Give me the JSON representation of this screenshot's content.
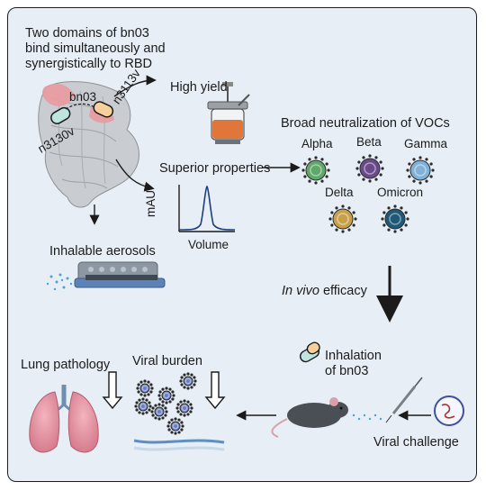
{
  "title_lines": [
    "Two domains of bn03",
    "bind simultaneously and",
    "synergistically to RBD"
  ],
  "domain_labels": {
    "bn03": "bn03",
    "n3113v": "n3113v",
    "n3130v": "n3130v"
  },
  "high_yield": "High yield",
  "superior_properties": "Superior properties",
  "chromatogram": {
    "ylabel": "mAU",
    "xlabel": "Volume"
  },
  "broad_neutralization": "Broad neutralization of VOCs",
  "variants": [
    "Alpha",
    "Beta",
    "Gamma",
    "Delta",
    "Omicron"
  ],
  "variant_colors": [
    "#5fa86a",
    "#6b4a8c",
    "#7fb2d6",
    "#c9a04a",
    "#1e5a78"
  ],
  "inhalable_aerosols": "Inhalable aerosols",
  "in_vivo": {
    "italic": "In vivo",
    "rest": " efficacy"
  },
  "inhalation_lines": [
    "Inhalation",
    "of bn03"
  ],
  "viral_challenge": "Viral challenge",
  "viral_burden": "Viral burden",
  "lung_pathology": "Lung pathology"
}
